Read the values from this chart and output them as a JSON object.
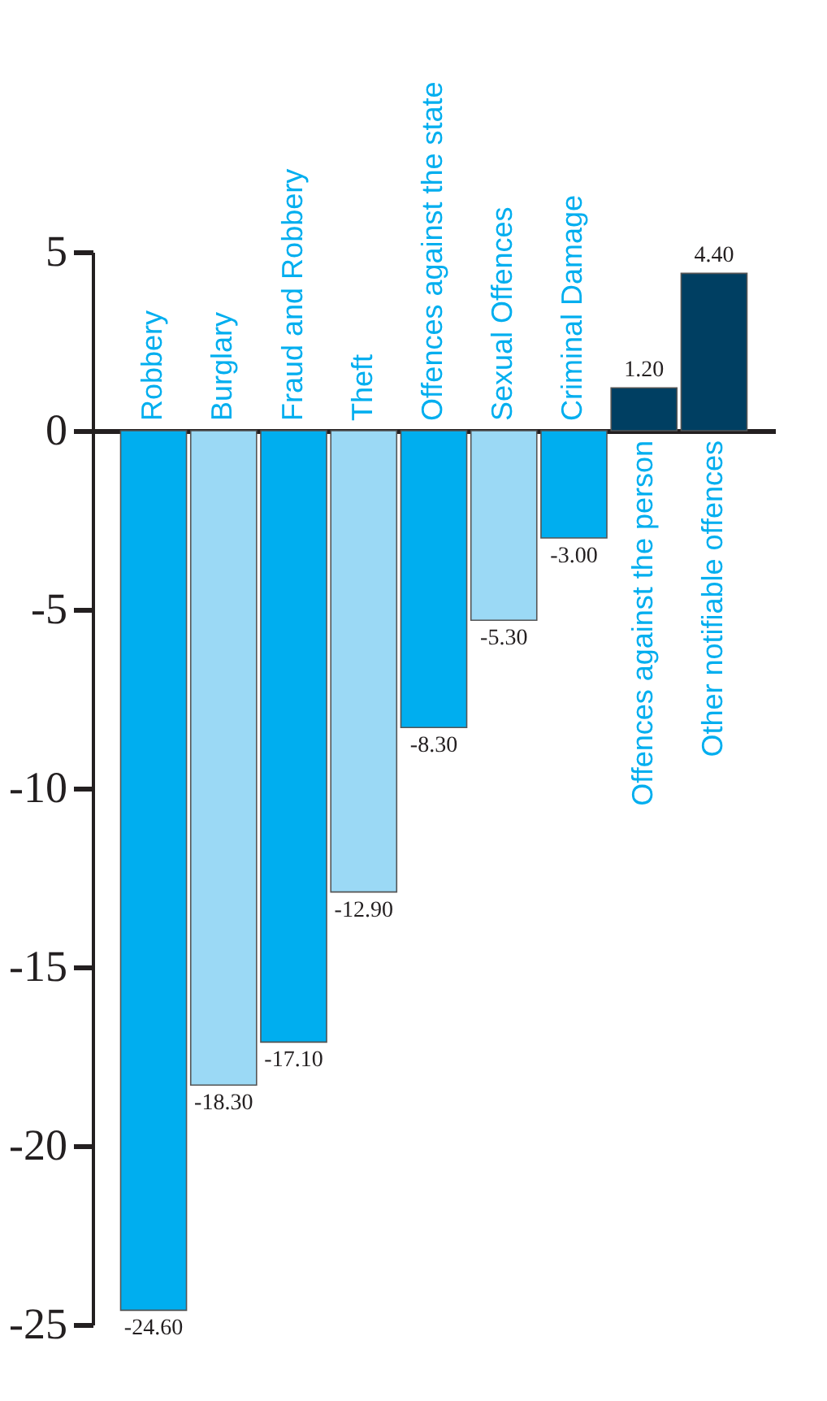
{
  "chart_data": {
    "type": "bar",
    "categories": [
      "Robbery",
      "Burglary",
      "Fraud and Robbery",
      "Theft",
      "Offences against the state",
      "Sexual Offences",
      "Criminal Damage",
      "Offences against the person",
      "Other notifiable offences"
    ],
    "values": [
      -24.6,
      -18.3,
      -17.1,
      -12.9,
      -8.3,
      -5.3,
      -3.0,
      1.2,
      4.4
    ],
    "colors": [
      "#00aeef",
      "#9bd9f5",
      "#00aeef",
      "#9bd9f5",
      "#00aeef",
      "#9bd9f5",
      "#00aeef",
      "#003f62",
      "#003f62"
    ],
    "value_labels": [
      "-24.60",
      "-18.30",
      "-17.10",
      "-12.90",
      "-8.30",
      "-5.30",
      "-3.00",
      "1.20",
      "4.40"
    ],
    "ylim": [
      -25,
      5
    ],
    "yticks": [
      5,
      0,
      -5,
      -10,
      -15,
      -20,
      -25
    ],
    "grid": false
  }
}
